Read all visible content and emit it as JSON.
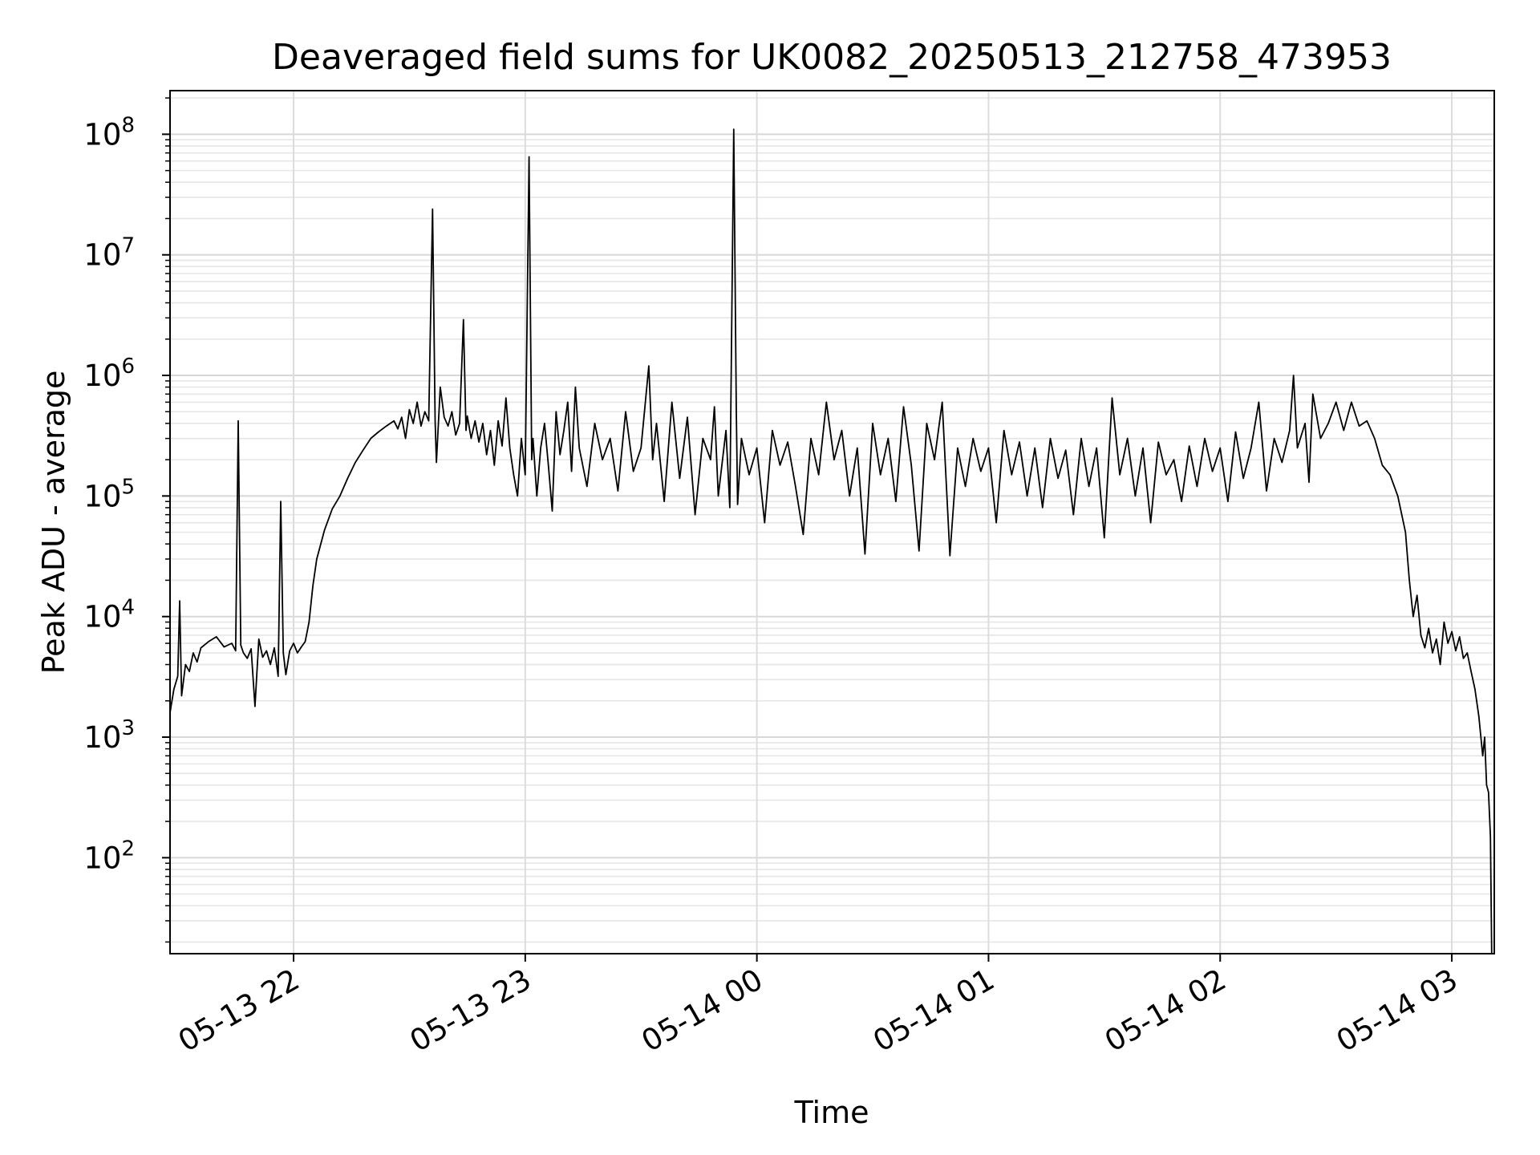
{
  "chart_data": {
    "type": "line",
    "title": "Deaveraged field sums for UK0082_20250513_212758_473953",
    "xlabel": "Time",
    "ylabel": "Peak ADU - average",
    "yscale": "log",
    "xlim": [
      "2025-05-13 21:28",
      "2025-05-14 03:11"
    ],
    "ylim": [
      16,
      230000000
    ],
    "grid": "major and minor",
    "xticks": [
      {
        "t": "2025-05-13 22:00",
        "label": "05-13 22"
      },
      {
        "t": "2025-05-13 23:00",
        "label": "05-13 23"
      },
      {
        "t": "2025-05-14 00:00",
        "label": "05-14 00"
      },
      {
        "t": "2025-05-14 01:00",
        "label": "05-14 01"
      },
      {
        "t": "2025-05-14 02:00",
        "label": "05-14 02"
      },
      {
        "t": "2025-05-14 03:00",
        "label": "05-14 03"
      }
    ],
    "yticks": [
      {
        "value": 100,
        "base": "10",
        "exp": "2"
      },
      {
        "value": 1000,
        "base": "10",
        "exp": "3"
      },
      {
        "value": 10000,
        "base": "10",
        "exp": "4"
      },
      {
        "value": 100000,
        "base": "10",
        "exp": "5"
      },
      {
        "value": 1000000,
        "base": "10",
        "exp": "6"
      },
      {
        "value": 10000000,
        "base": "10",
        "exp": "7"
      },
      {
        "value": 100000000,
        "base": "10",
        "exp": "8"
      }
    ],
    "series": [
      {
        "color": "#000000",
        "points": [
          [
            "2025-05-13 21:28",
            1600
          ],
          [
            "2025-05-13 21:29",
            2500
          ],
          [
            "2025-05-13 21:30",
            3200
          ],
          [
            "2025-05-13 21:30:30",
            13500
          ],
          [
            "2025-05-13 21:31",
            2200
          ],
          [
            "2025-05-13 21:32",
            4000
          ],
          [
            "2025-05-13 21:33",
            3500
          ],
          [
            "2025-05-13 21:34",
            5000
          ],
          [
            "2025-05-13 21:35",
            4200
          ],
          [
            "2025-05-13 21:36",
            5500
          ],
          [
            "2025-05-13 21:38",
            6200
          ],
          [
            "2025-05-13 21:40",
            6800
          ],
          [
            "2025-05-13 21:42",
            5600
          ],
          [
            "2025-05-13 21:44",
            6000
          ],
          [
            "2025-05-13 21:45",
            5200
          ],
          [
            "2025-05-13 21:45:40",
            420000
          ],
          [
            "2025-05-13 21:46:20",
            5800
          ],
          [
            "2025-05-13 21:47",
            5000
          ],
          [
            "2025-05-13 21:48",
            4500
          ],
          [
            "2025-05-13 21:49",
            5400
          ],
          [
            "2025-05-13 21:50",
            1800
          ],
          [
            "2025-05-13 21:51",
            6500
          ],
          [
            "2025-05-13 21:52",
            4600
          ],
          [
            "2025-05-13 21:53",
            5200
          ],
          [
            "2025-05-13 21:54",
            4000
          ],
          [
            "2025-05-13 21:55",
            5500
          ],
          [
            "2025-05-13 21:56",
            3200
          ],
          [
            "2025-05-13 21:56:40",
            90000
          ],
          [
            "2025-05-13 21:57:20",
            5000
          ],
          [
            "2025-05-13 21:58",
            3300
          ],
          [
            "2025-05-13 21:59",
            5200
          ],
          [
            "2025-05-13 22:00",
            6000
          ],
          [
            "2025-05-13 22:01",
            5000
          ],
          [
            "2025-05-13 22:02",
            5600
          ],
          [
            "2025-05-13 22:03",
            6200
          ],
          [
            "2025-05-13 22:04",
            9000
          ],
          [
            "2025-05-13 22:05",
            18000
          ],
          [
            "2025-05-13 22:06",
            30000
          ],
          [
            "2025-05-13 22:08",
            52000
          ],
          [
            "2025-05-13 22:10",
            78000
          ],
          [
            "2025-05-13 22:12",
            100000
          ],
          [
            "2025-05-13 22:14",
            140000
          ],
          [
            "2025-05-13 22:16",
            190000
          ],
          [
            "2025-05-13 22:18",
            240000
          ],
          [
            "2025-05-13 22:20",
            300000
          ],
          [
            "2025-05-13 22:22",
            340000
          ],
          [
            "2025-05-13 22:24",
            380000
          ],
          [
            "2025-05-13 22:26",
            420000
          ],
          [
            "2025-05-13 22:27",
            360000
          ],
          [
            "2025-05-13 22:28",
            450000
          ],
          [
            "2025-05-13 22:29",
            300000
          ],
          [
            "2025-05-13 22:30",
            520000
          ],
          [
            "2025-05-13 22:31",
            400000
          ],
          [
            "2025-05-13 22:32",
            600000
          ],
          [
            "2025-05-13 22:33",
            380000
          ],
          [
            "2025-05-13 22:34",
            500000
          ],
          [
            "2025-05-13 22:35",
            420000
          ],
          [
            "2025-05-13 22:36",
            24000000
          ],
          [
            "2025-05-13 22:36:40",
            420000
          ],
          [
            "2025-05-13 22:37",
            190000
          ],
          [
            "2025-05-13 22:38",
            800000
          ],
          [
            "2025-05-13 22:39",
            450000
          ],
          [
            "2025-05-13 22:40",
            380000
          ],
          [
            "2025-05-13 22:41",
            500000
          ],
          [
            "2025-05-13 22:42",
            320000
          ],
          [
            "2025-05-13 22:43",
            400000
          ],
          [
            "2025-05-13 22:44",
            2900000
          ],
          [
            "2025-05-13 22:44:40",
            350000
          ],
          [
            "2025-05-13 22:45",
            460000
          ],
          [
            "2025-05-13 22:46",
            300000
          ],
          [
            "2025-05-13 22:47",
            420000
          ],
          [
            "2025-05-13 22:48",
            280000
          ],
          [
            "2025-05-13 22:49",
            400000
          ],
          [
            "2025-05-13 22:50",
            220000
          ],
          [
            "2025-05-13 22:51",
            350000
          ],
          [
            "2025-05-13 22:52",
            180000
          ],
          [
            "2025-05-13 22:53",
            420000
          ],
          [
            "2025-05-13 22:54",
            260000
          ],
          [
            "2025-05-13 22:55",
            650000
          ],
          [
            "2025-05-13 22:56",
            250000
          ],
          [
            "2025-05-13 22:57",
            150000
          ],
          [
            "2025-05-13 22:58",
            100000
          ],
          [
            "2025-05-13 22:59",
            300000
          ],
          [
            "2025-05-13 23:00",
            150000
          ],
          [
            "2025-05-13 23:01",
            65000000
          ],
          [
            "2025-05-13 23:01:40",
            200000
          ],
          [
            "2025-05-13 23:02",
            300000
          ],
          [
            "2025-05-13 23:03",
            100000
          ],
          [
            "2025-05-13 23:04",
            250000
          ],
          [
            "2025-05-13 23:05",
            400000
          ],
          [
            "2025-05-13 23:06",
            180000
          ],
          [
            "2025-05-13 23:07",
            75000
          ],
          [
            "2025-05-13 23:08",
            500000
          ],
          [
            "2025-05-13 23:09",
            220000
          ],
          [
            "2025-05-13 23:10",
            350000
          ],
          [
            "2025-05-13 23:11",
            600000
          ],
          [
            "2025-05-13 23:12",
            160000
          ],
          [
            "2025-05-13 23:13",
            800000
          ],
          [
            "2025-05-13 23:14",
            250000
          ],
          [
            "2025-05-13 23:16",
            120000
          ],
          [
            "2025-05-13 23:18",
            400000
          ],
          [
            "2025-05-13 23:20",
            200000
          ],
          [
            "2025-05-13 23:22",
            300000
          ],
          [
            "2025-05-13 23:24",
            110000
          ],
          [
            "2025-05-13 23:26",
            500000
          ],
          [
            "2025-05-13 23:28",
            160000
          ],
          [
            "2025-05-13 23:30",
            250000
          ],
          [
            "2025-05-13 23:32",
            1200000
          ],
          [
            "2025-05-13 23:33",
            200000
          ],
          [
            "2025-05-13 23:34",
            400000
          ],
          [
            "2025-05-13 23:36",
            90000
          ],
          [
            "2025-05-13 23:38",
            600000
          ],
          [
            "2025-05-13 23:40",
            140000
          ],
          [
            "2025-05-13 23:42",
            450000
          ],
          [
            "2025-05-13 23:44",
            70000
          ],
          [
            "2025-05-13 23:46",
            300000
          ],
          [
            "2025-05-13 23:48",
            200000
          ],
          [
            "2025-05-13 23:49",
            550000
          ],
          [
            "2025-05-13 23:50",
            100000
          ],
          [
            "2025-05-13 23:52",
            350000
          ],
          [
            "2025-05-13 23:53",
            80000
          ],
          [
            "2025-05-13 23:54",
            110000000
          ],
          [
            "2025-05-13 23:54:40",
            500000
          ],
          [
            "2025-05-13 23:55",
            85000
          ],
          [
            "2025-05-13 23:56",
            300000
          ],
          [
            "2025-05-13 23:58",
            150000
          ],
          [
            "2025-05-14 00:00",
            250000
          ],
          [
            "2025-05-14 00:02",
            60000
          ],
          [
            "2025-05-14 00:04",
            350000
          ],
          [
            "2025-05-14 00:06",
            180000
          ],
          [
            "2025-05-14 00:08",
            280000
          ],
          [
            "2025-05-14 00:10",
            120000
          ],
          [
            "2025-05-14 00:12",
            48000
          ],
          [
            "2025-05-14 00:14",
            300000
          ],
          [
            "2025-05-14 00:16",
            150000
          ],
          [
            "2025-05-14 00:18",
            600000
          ],
          [
            "2025-05-14 00:20",
            200000
          ],
          [
            "2025-05-14 00:22",
            350000
          ],
          [
            "2025-05-14 00:24",
            100000
          ],
          [
            "2025-05-14 00:26",
            250000
          ],
          [
            "2025-05-14 00:28",
            33000
          ],
          [
            "2025-05-14 00:30",
            400000
          ],
          [
            "2025-05-14 00:32",
            150000
          ],
          [
            "2025-05-14 00:34",
            300000
          ],
          [
            "2025-05-14 00:36",
            90000
          ],
          [
            "2025-05-14 00:38",
            550000
          ],
          [
            "2025-05-14 00:40",
            180000
          ],
          [
            "2025-05-14 00:42",
            35000
          ],
          [
            "2025-05-14 00:44",
            400000
          ],
          [
            "2025-05-14 00:46",
            200000
          ],
          [
            "2025-05-14 00:48",
            600000
          ],
          [
            "2025-05-14 00:50",
            32000
          ],
          [
            "2025-05-14 00:52",
            250000
          ],
          [
            "2025-05-14 00:54",
            120000
          ],
          [
            "2025-05-14 00:56",
            300000
          ],
          [
            "2025-05-14 00:58",
            160000
          ],
          [
            "2025-05-14 01:00",
            250000
          ],
          [
            "2025-05-14 01:02",
            60000
          ],
          [
            "2025-05-14 01:04",
            350000
          ],
          [
            "2025-05-14 01:06",
            150000
          ],
          [
            "2025-05-14 01:08",
            280000
          ],
          [
            "2025-05-14 01:10",
            100000
          ],
          [
            "2025-05-14 01:12",
            250000
          ],
          [
            "2025-05-14 01:14",
            80000
          ],
          [
            "2025-05-14 01:16",
            300000
          ],
          [
            "2025-05-14 01:18",
            140000
          ],
          [
            "2025-05-14 01:20",
            240000
          ],
          [
            "2025-05-14 01:22",
            70000
          ],
          [
            "2025-05-14 01:24",
            300000
          ],
          [
            "2025-05-14 01:26",
            120000
          ],
          [
            "2025-05-14 01:28",
            250000
          ],
          [
            "2025-05-14 01:30",
            45000
          ],
          [
            "2025-05-14 01:32",
            650000
          ],
          [
            "2025-05-14 01:34",
            150000
          ],
          [
            "2025-05-14 01:36",
            300000
          ],
          [
            "2025-05-14 01:38",
            100000
          ],
          [
            "2025-05-14 01:40",
            250000
          ],
          [
            "2025-05-14 01:42",
            60000
          ],
          [
            "2025-05-14 01:44",
            280000
          ],
          [
            "2025-05-14 01:46",
            150000
          ],
          [
            "2025-05-14 01:48",
            200000
          ],
          [
            "2025-05-14 01:50",
            90000
          ],
          [
            "2025-05-14 01:52",
            260000
          ],
          [
            "2025-05-14 01:54",
            120000
          ],
          [
            "2025-05-14 01:56",
            300000
          ],
          [
            "2025-05-14 01:58",
            160000
          ],
          [
            "2025-05-14 02:00",
            250000
          ],
          [
            "2025-05-14 02:02",
            90000
          ],
          [
            "2025-05-14 02:04",
            340000
          ],
          [
            "2025-05-14 02:06",
            140000
          ],
          [
            "2025-05-14 02:08",
            250000
          ],
          [
            "2025-05-14 02:10",
            600000
          ],
          [
            "2025-05-14 02:12",
            110000
          ],
          [
            "2025-05-14 02:14",
            300000
          ],
          [
            "2025-05-14 02:16",
            190000
          ],
          [
            "2025-05-14 02:18",
            350000
          ],
          [
            "2025-05-14 02:19",
            1000000
          ],
          [
            "2025-05-14 02:20",
            250000
          ],
          [
            "2025-05-14 02:22",
            400000
          ],
          [
            "2025-05-14 02:23",
            130000
          ],
          [
            "2025-05-14 02:24",
            700000
          ],
          [
            "2025-05-14 02:26",
            300000
          ],
          [
            "2025-05-14 02:28",
            400000
          ],
          [
            "2025-05-14 02:30",
            600000
          ],
          [
            "2025-05-14 02:32",
            350000
          ],
          [
            "2025-05-14 02:34",
            600000
          ],
          [
            "2025-05-14 02:36",
            380000
          ],
          [
            "2025-05-14 02:38",
            420000
          ],
          [
            "2025-05-14 02:40",
            300000
          ],
          [
            "2025-05-14 02:42",
            180000
          ],
          [
            "2025-05-14 02:44",
            150000
          ],
          [
            "2025-05-14 02:46",
            100000
          ],
          [
            "2025-05-14 02:48",
            50000
          ],
          [
            "2025-05-14 02:49",
            20000
          ],
          [
            "2025-05-14 02:50",
            10000
          ],
          [
            "2025-05-14 02:51",
            15000
          ],
          [
            "2025-05-14 02:52",
            7000
          ],
          [
            "2025-05-14 02:53",
            5500
          ],
          [
            "2025-05-14 02:54",
            8000
          ],
          [
            "2025-05-14 02:55",
            5000
          ],
          [
            "2025-05-14 02:56",
            6500
          ],
          [
            "2025-05-14 02:57",
            4000
          ],
          [
            "2025-05-14 02:58",
            9000
          ],
          [
            "2025-05-14 02:59",
            6000
          ],
          [
            "2025-05-14 03:00",
            7500
          ],
          [
            "2025-05-14 03:01",
            5200
          ],
          [
            "2025-05-14 03:02",
            6800
          ],
          [
            "2025-05-14 03:03",
            4500
          ],
          [
            "2025-05-14 03:04",
            5000
          ],
          [
            "2025-05-14 03:05",
            3500
          ],
          [
            "2025-05-14 03:06",
            2500
          ],
          [
            "2025-05-14 03:07",
            1500
          ],
          [
            "2025-05-14 03:08",
            700
          ],
          [
            "2025-05-14 03:08:30",
            1000
          ],
          [
            "2025-05-14 03:09",
            400
          ],
          [
            "2025-05-14 03:09:30",
            350
          ],
          [
            "2025-05-14 03:10",
            150
          ],
          [
            "2025-05-14 03:10:20",
            16
          ]
        ]
      }
    ]
  }
}
